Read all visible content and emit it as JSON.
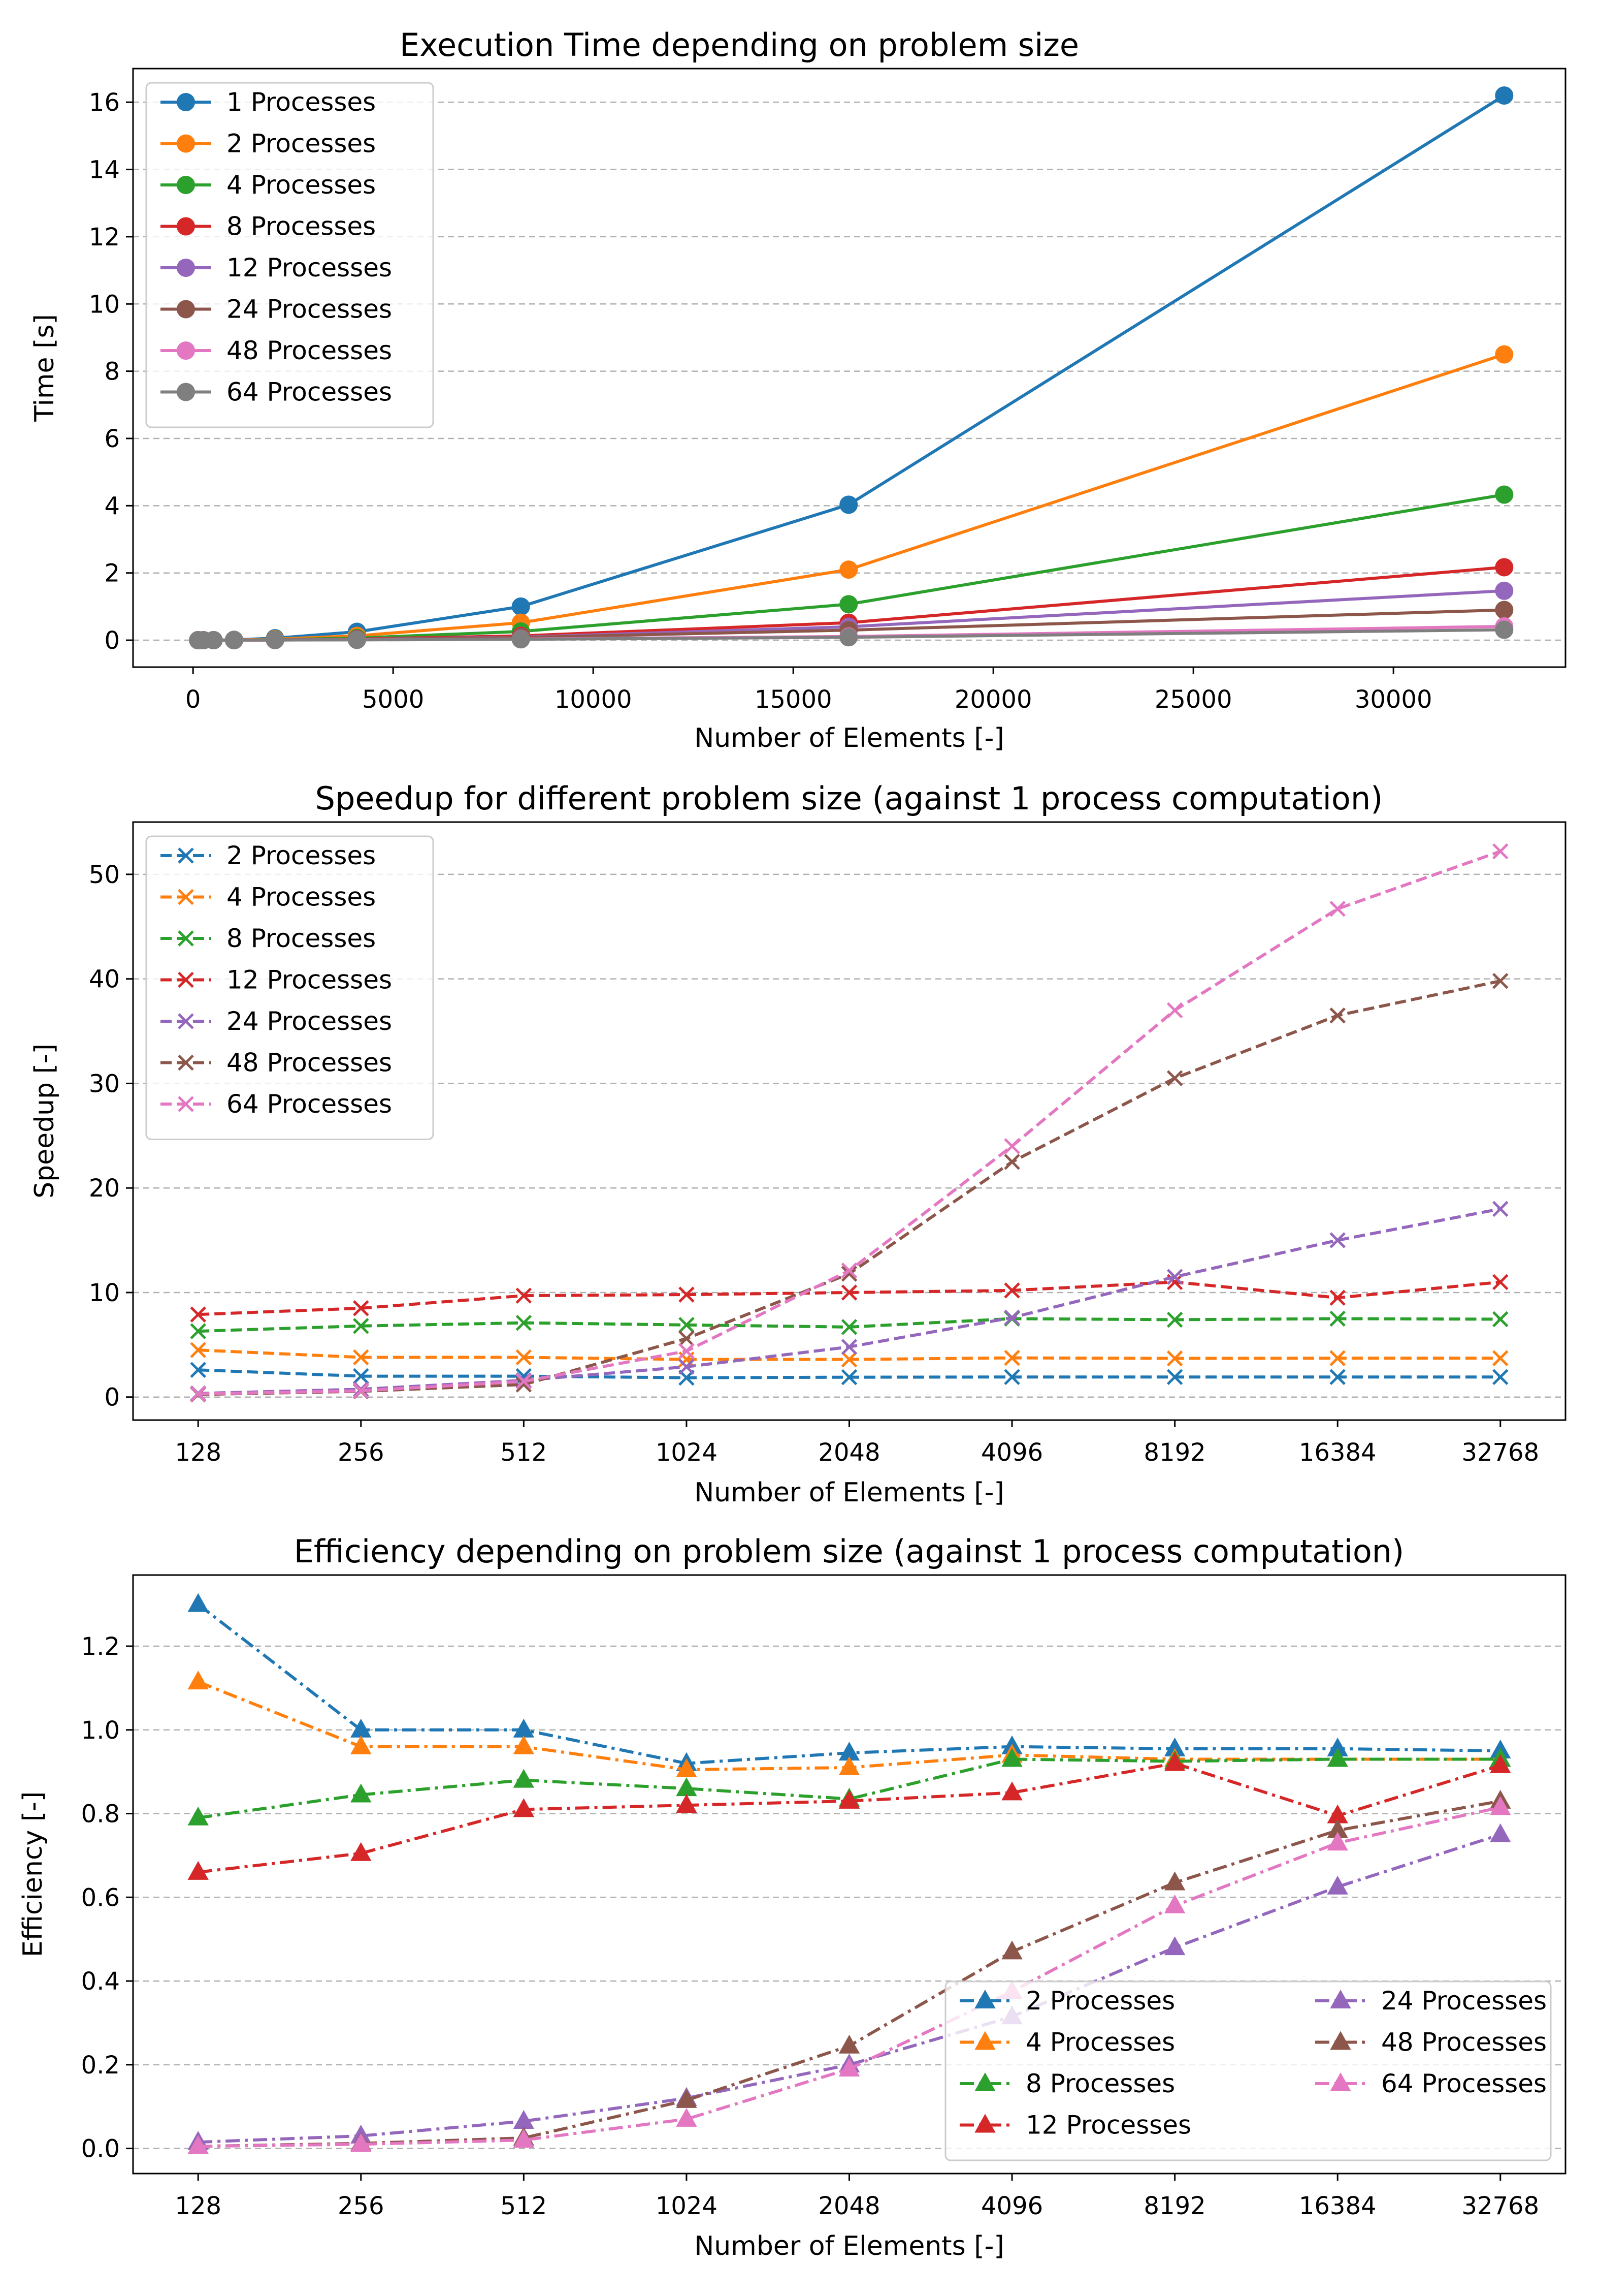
{
  "chart_data": [
    {
      "type": "line",
      "title": "Execution Time depending on problem size",
      "xlabel": "Number of Elements [-]",
      "ylabel": "Time [s]",
      "xscale": "linear",
      "xlim": [
        -1500,
        34300
      ],
      "ylim": [
        -0.8,
        17.0
      ],
      "xticks": [
        0,
        5000,
        10000,
        15000,
        20000,
        25000,
        30000
      ],
      "xtick_labels": [
        "0",
        "5000",
        "10000",
        "15000",
        "20000",
        "25000",
        "30000"
      ],
      "yticks": [
        0,
        2,
        4,
        6,
        8,
        10,
        12,
        14,
        16
      ],
      "ytick_labels": [
        "0",
        "2",
        "4",
        "6",
        "8",
        "10",
        "12",
        "14",
        "16"
      ],
      "grid": "y-dashed",
      "marker": "circle",
      "linestyle": "solid",
      "legend": {
        "placement": "top-left",
        "columns": 1
      },
      "x": [
        128,
        256,
        512,
        1024,
        2048,
        4096,
        8192,
        16384,
        32768
      ],
      "series": [
        {
          "name": "1 Processes",
          "color": "#1f77b4",
          "values": [
            0.0002,
            0.0007,
            0.003,
            0.012,
            0.06,
            0.25,
            1.0,
            4.03,
            16.2
          ]
        },
        {
          "name": "2 Processes",
          "color": "#ff7f0e",
          "values": [
            0.0001,
            0.0004,
            0.0015,
            0.0065,
            0.032,
            0.13,
            0.52,
            2.1,
            8.5
          ]
        },
        {
          "name": "4 Processes",
          "color": "#2ca02c",
          "values": [
            5e-05,
            0.0002,
            0.0008,
            0.0035,
            0.016,
            0.065,
            0.26,
            1.07,
            4.33
          ]
        },
        {
          "name": "8 Processes",
          "color": "#d62728",
          "values": [
            3e-05,
            0.0001,
            0.0004,
            0.0017,
            0.009,
            0.035,
            0.13,
            0.52,
            2.17
          ]
        },
        {
          "name": "12 Processes",
          "color": "#9467bd",
          "values": [
            3e-05,
            0.0001,
            0.0003,
            0.0012,
            0.006,
            0.025,
            0.09,
            0.4,
            1.47
          ]
        },
        {
          "name": "24 Processes",
          "color": "#8c564b",
          "values": [
            0.0001,
            0.0002,
            0.0004,
            0.0009,
            0.005,
            0.02,
            0.08,
            0.3,
            0.9
          ]
        },
        {
          "name": "48 Processes",
          "color": "#e377c2",
          "values": [
            0.0005,
            0.001,
            0.0025,
            0.004,
            0.006,
            0.012,
            0.035,
            0.11,
            0.41
          ]
        },
        {
          "name": "64 Processes",
          "color": "#7f7f7f",
          "values": [
            0.0007,
            0.0015,
            0.003,
            0.005,
            0.006,
            0.01,
            0.027,
            0.087,
            0.31
          ]
        }
      ]
    },
    {
      "type": "line",
      "title": "Speedup for different problem size (against 1 process computation)",
      "xlabel": "Number of Elements [-]",
      "ylabel": "Speedup [-]",
      "xscale": "log2",
      "categories": [
        "128",
        "256",
        "512",
        "1024",
        "2048",
        "4096",
        "8192",
        "16384",
        "32768"
      ],
      "ylim": [
        -2.2,
        55
      ],
      "yticks": [
        0,
        10,
        20,
        30,
        40,
        50
      ],
      "ytick_labels": [
        "0",
        "10",
        "20",
        "30",
        "40",
        "50"
      ],
      "grid": "y-dashed",
      "marker": "x",
      "linestyle": "dashed",
      "legend": {
        "placement": "top-left",
        "columns": 1
      },
      "series": [
        {
          "name": "2 Processes",
          "color": "#1f77b4",
          "values": [
            2.6,
            2.0,
            2.0,
            1.85,
            1.9,
            1.92,
            1.92,
            1.92,
            1.92
          ]
        },
        {
          "name": "4 Processes",
          "color": "#ff7f0e",
          "values": [
            4.5,
            3.8,
            3.8,
            3.6,
            3.6,
            3.75,
            3.7,
            3.72,
            3.72
          ]
        },
        {
          "name": "8 Processes",
          "color": "#2ca02c",
          "values": [
            6.3,
            6.8,
            7.1,
            6.9,
            6.7,
            7.5,
            7.4,
            7.5,
            7.45
          ]
        },
        {
          "name": "12 Processes",
          "color": "#d62728",
          "values": [
            7.9,
            8.5,
            9.7,
            9.8,
            10.0,
            10.2,
            11.0,
            9.5,
            11.0
          ]
        },
        {
          "name": "24 Processes",
          "color": "#9467bd",
          "values": [
            0.35,
            0.75,
            1.6,
            2.9,
            4.8,
            7.6,
            11.5,
            15.0,
            18.0
          ]
        },
        {
          "name": "48 Processes",
          "color": "#8c564b",
          "values": [
            0.25,
            0.55,
            1.2,
            5.6,
            11.8,
            22.5,
            30.5,
            36.5,
            39.8
          ]
        },
        {
          "name": "64 Processes",
          "color": "#e377c2",
          "values": [
            0.3,
            0.6,
            1.5,
            4.4,
            12.1,
            24.0,
            37.0,
            46.7,
            52.2
          ]
        }
      ]
    },
    {
      "type": "line",
      "title": "Efficiency depending on problem size (against 1 process computation)",
      "xlabel": "Number of Elements [-]",
      "ylabel": "Efficiency [-]",
      "xscale": "log2",
      "categories": [
        "128",
        "256",
        "512",
        "1024",
        "2048",
        "4096",
        "8192",
        "16384",
        "32768"
      ],
      "ylim": [
        -0.06,
        1.37
      ],
      "yticks": [
        0.0,
        0.2,
        0.4,
        0.6,
        0.8,
        1.0,
        1.2
      ],
      "ytick_labels": [
        "0.0",
        "0.2",
        "0.4",
        "0.6",
        "0.8",
        "1.0",
        "1.2"
      ],
      "grid": "y-dashed",
      "marker": "triangle",
      "linestyle": "dashdot",
      "legend": {
        "placement": "lower-right",
        "columns": 2
      },
      "series": [
        {
          "name": "2 Processes",
          "color": "#1f77b4",
          "values": [
            1.3,
            1.0,
            1.0,
            0.92,
            0.945,
            0.96,
            0.955,
            0.955,
            0.95
          ]
        },
        {
          "name": "4 Processes",
          "color": "#ff7f0e",
          "values": [
            1.115,
            0.96,
            0.96,
            0.905,
            0.91,
            0.94,
            0.93,
            0.93,
            0.93
          ]
        },
        {
          "name": "8 Processes",
          "color": "#2ca02c",
          "values": [
            0.79,
            0.845,
            0.88,
            0.86,
            0.835,
            0.93,
            0.925,
            0.93,
            0.93
          ]
        },
        {
          "name": "12 Processes",
          "color": "#d62728",
          "values": [
            0.66,
            0.705,
            0.81,
            0.82,
            0.83,
            0.85,
            0.92,
            0.795,
            0.915
          ]
        },
        {
          "name": "24 Processes",
          "color": "#9467bd",
          "values": [
            0.015,
            0.03,
            0.065,
            0.12,
            0.2,
            0.315,
            0.48,
            0.625,
            0.75
          ]
        },
        {
          "name": "48 Processes",
          "color": "#8c564b",
          "values": [
            0.005,
            0.012,
            0.025,
            0.115,
            0.245,
            0.47,
            0.635,
            0.76,
            0.83
          ]
        },
        {
          "name": "64 Processes",
          "color": "#e377c2",
          "values": [
            0.005,
            0.01,
            0.02,
            0.07,
            0.19,
            0.375,
            0.58,
            0.73,
            0.815
          ]
        }
      ]
    }
  ]
}
